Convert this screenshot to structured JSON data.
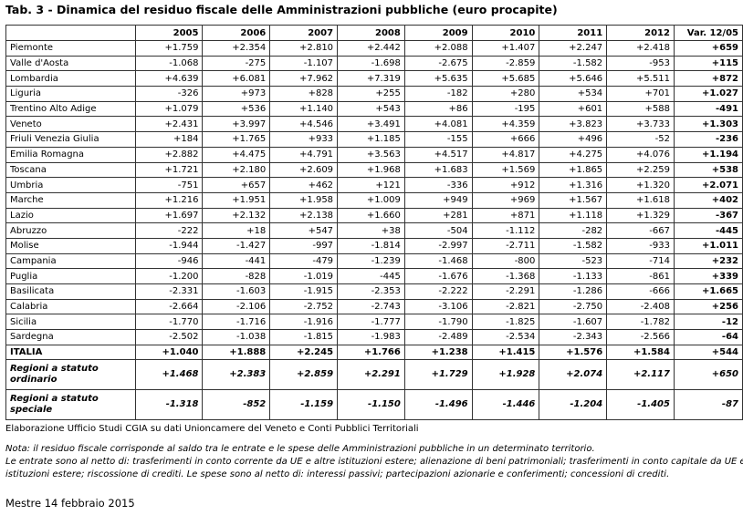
{
  "title": "Tab. 3 - Dinamica del residuo fiscale delle Amministrazioni pubbliche (euro procapite)",
  "table": {
    "header": [
      "2005",
      "2006",
      "2007",
      "2008",
      "2009",
      "2010",
      "2011",
      "2012",
      "Var. 12/05"
    ],
    "rows": [
      [
        "Piemonte",
        "+1.759",
        "+2.354",
        "+2.810",
        "+2.442",
        "+2.088",
        "+1.407",
        "+2.247",
        "+2.418",
        "+659"
      ],
      [
        "Valle d'Aosta",
        "-1.068",
        "-275",
        "-1.107",
        "-1.698",
        "-2.675",
        "-2.859",
        "-1.582",
        "-953",
        "+115"
      ],
      [
        "Lombardia",
        "+4.639",
        "+6.081",
        "+7.962",
        "+7.319",
        "+5.635",
        "+5.685",
        "+5.646",
        "+5.511",
        "+872"
      ],
      [
        "Liguria",
        "-326",
        "+973",
        "+828",
        "+255",
        "-182",
        "+280",
        "+534",
        "+701",
        "+1.027"
      ],
      [
        "Trentino Alto Adige",
        "+1.079",
        "+536",
        "+1.140",
        "+543",
        "+86",
        "-195",
        "+601",
        "+588",
        "-491"
      ],
      [
        "Veneto",
        "+2.431",
        "+3.997",
        "+4.546",
        "+3.491",
        "+4.081",
        "+4.359",
        "+3.823",
        "+3.733",
        "+1.303"
      ],
      [
        "Friuli Venezia Giulia",
        "+184",
        "+1.765",
        "+933",
        "+1.185",
        "-155",
        "+666",
        "+496",
        "-52",
        "-236"
      ],
      [
        "Emilia Romagna",
        "+2.882",
        "+4.475",
        "+4.791",
        "+3.563",
        "+4.517",
        "+4.817",
        "+4.275",
        "+4.076",
        "+1.194"
      ],
      [
        "Toscana",
        "+1.721",
        "+2.180",
        "+2.609",
        "+1.968",
        "+1.683",
        "+1.569",
        "+1.865",
        "+2.259",
        "+538"
      ],
      [
        "Umbria",
        "-751",
        "+657",
        "+462",
        "+121",
        "-336",
        "+912",
        "+1.316",
        "+1.320",
        "+2.071"
      ],
      [
        "Marche",
        "+1.216",
        "+1.951",
        "+1.958",
        "+1.009",
        "+949",
        "+969",
        "+1.567",
        "+1.618",
        "+402"
      ],
      [
        "Lazio",
        "+1.697",
        "+2.132",
        "+2.138",
        "+1.660",
        "+281",
        "+871",
        "+1.118",
        "+1.329",
        "-367"
      ],
      [
        "Abruzzo",
        "-222",
        "+18",
        "+547",
        "+38",
        "-504",
        "-1.112",
        "-282",
        "-667",
        "-445"
      ],
      [
        "Molise",
        "-1.944",
        "-1.427",
        "-997",
        "-1.814",
        "-2.997",
        "-2.711",
        "-1.582",
        "-933",
        "+1.011"
      ],
      [
        "Campania",
        "-946",
        "-441",
        "-479",
        "-1.239",
        "-1.468",
        "-800",
        "-523",
        "-714",
        "+232"
      ],
      [
        "Puglia",
        "-1.200",
        "-828",
        "-1.019",
        "-445",
        "-1.676",
        "-1.368",
        "-1.133",
        "-861",
        "+339"
      ],
      [
        "Basilicata",
        "-2.331",
        "-1.603",
        "-1.915",
        "-2.353",
        "-2.222",
        "-2.291",
        "-1.286",
        "-666",
        "+1.665"
      ],
      [
        "Calabria",
        "-2.664",
        "-2.106",
        "-2.752",
        "-2.743",
        "-3.106",
        "-2.821",
        "-2.750",
        "-2.408",
        "+256"
      ],
      [
        "Sicilia",
        "-1.770",
        "-1.716",
        "-1.916",
        "-1.777",
        "-1.790",
        "-1.825",
        "-1.607",
        "-1.782",
        "-12"
      ],
      [
        "Sardegna",
        "-2.502",
        "-1.038",
        "-1.815",
        "-1.983",
        "-2.489",
        "-2.534",
        "-2.343",
        "-2.566",
        "-64"
      ],
      [
        "ITALIA",
        "+1.040",
        "+1.888",
        "+2.245",
        "+1.766",
        "+1.238",
        "+1.415",
        "+1.576",
        "+1.584",
        "+544"
      ],
      [
        "Regioni a statuto ordinario",
        "+1.468",
        "+2.383",
        "+2.859",
        "+2.291",
        "+1.729",
        "+1.928",
        "+2.074",
        "+2.117",
        "+650"
      ],
      [
        "Regioni a statuto speciale",
        "-1.318",
        "-852",
        "-1.159",
        "-1.150",
        "-1.496",
        "-1.446",
        "-1.204",
        "-1.405",
        "-87"
      ]
    ]
  },
  "source": "Elaborazione Ufficio Studi CGIA su dati Unioncamere del Veneto e Conti Pubblici Territoriali",
  "note": [
    "Nota: il residuo fiscale corrisponde al saldo tra le entrate e le spese delle Amministrazioni pubbliche in un determinato territorio.",
    "Le entrate sono al netto di: trasferimenti in conto corrente da UE e altre istituzioni estere; alienazione di beni patrimoniali; trasferimenti in conto capitale da UE e altre",
    "istituzioni estere; riscossione di crediti. Le spese sono al netto di: interessi passivi; partecipazioni azionarie e conferimenti; concessioni di crediti."
  ],
  "date": "Mestre 14 febbraio 2015"
}
